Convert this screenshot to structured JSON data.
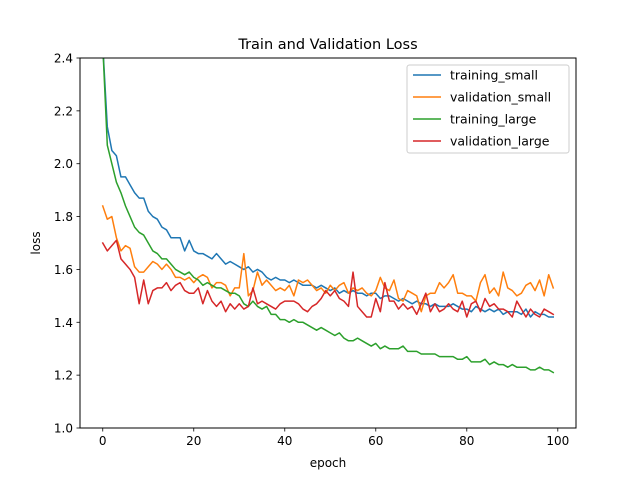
{
  "chart_data": {
    "type": "line",
    "title": "Train and Validation Loss",
    "xlabel": "epoch",
    "ylabel": "loss",
    "xlim": [
      -5,
      104
    ],
    "ylim": [
      1.0,
      2.4
    ],
    "xticks": [
      0,
      20,
      40,
      60,
      80,
      100
    ],
    "yticks": [
      1.0,
      1.2,
      1.4,
      1.6,
      1.8,
      2.0,
      2.2,
      2.4
    ],
    "xtick_labels": [
      "0",
      "20",
      "40",
      "60",
      "80",
      "100"
    ],
    "ytick_labels": [
      "1.0",
      "1.2",
      "1.4",
      "1.6",
      "1.8",
      "2.0",
      "2.2",
      "2.4"
    ],
    "grid": false,
    "legend": "top-right",
    "x": [
      0,
      1,
      2,
      3,
      4,
      5,
      6,
      7,
      8,
      9,
      10,
      11,
      12,
      13,
      14,
      15,
      16,
      17,
      18,
      19,
      20,
      21,
      22,
      23,
      24,
      25,
      26,
      27,
      28,
      29,
      30,
      31,
      32,
      33,
      34,
      35,
      36,
      37,
      38,
      39,
      40,
      41,
      42,
      43,
      44,
      45,
      46,
      47,
      48,
      49,
      50,
      51,
      52,
      53,
      54,
      55,
      56,
      57,
      58,
      59,
      60,
      61,
      62,
      63,
      64,
      65,
      66,
      67,
      68,
      69,
      70,
      71,
      72,
      73,
      74,
      75,
      76,
      77,
      78,
      79,
      80,
      81,
      82,
      83,
      84,
      85,
      86,
      87,
      88,
      89,
      90,
      91,
      92,
      93,
      94,
      95,
      96,
      97,
      98,
      99
    ],
    "series": [
      {
        "name": "training_small",
        "color": "#1f77b4",
        "values": [
          2.45,
          2.14,
          2.05,
          2.03,
          1.95,
          1.95,
          1.92,
          1.89,
          1.87,
          1.87,
          1.82,
          1.8,
          1.79,
          1.76,
          1.75,
          1.72,
          1.72,
          1.72,
          1.67,
          1.71,
          1.67,
          1.66,
          1.66,
          1.65,
          1.64,
          1.66,
          1.64,
          1.62,
          1.63,
          1.62,
          1.61,
          1.6,
          1.61,
          1.59,
          1.6,
          1.59,
          1.57,
          1.56,
          1.57,
          1.56,
          1.56,
          1.55,
          1.56,
          1.55,
          1.54,
          1.54,
          1.54,
          1.53,
          1.54,
          1.53,
          1.52,
          1.53,
          1.51,
          1.52,
          1.51,
          1.52,
          1.51,
          1.51,
          1.5,
          1.51,
          1.51,
          1.49,
          1.5,
          1.5,
          1.49,
          1.48,
          1.49,
          1.48,
          1.47,
          1.48,
          1.47,
          1.47,
          1.46,
          1.47,
          1.46,
          1.46,
          1.46,
          1.47,
          1.46,
          1.45,
          1.45,
          1.44,
          1.46,
          1.45,
          1.44,
          1.45,
          1.44,
          1.45,
          1.43,
          1.44,
          1.44,
          1.44,
          1.43,
          1.45,
          1.42,
          1.44,
          1.43,
          1.43,
          1.42,
          1.42
        ]
      },
      {
        "name": "validation_small",
        "color": "#ff7f0e",
        "values": [
          1.84,
          1.79,
          1.8,
          1.72,
          1.67,
          1.69,
          1.68,
          1.61,
          1.59,
          1.59,
          1.61,
          1.63,
          1.62,
          1.6,
          1.62,
          1.6,
          1.57,
          1.57,
          1.56,
          1.57,
          1.55,
          1.57,
          1.58,
          1.57,
          1.53,
          1.55,
          1.55,
          1.54,
          1.5,
          1.53,
          1.53,
          1.66,
          1.5,
          1.52,
          1.59,
          1.54,
          1.56,
          1.54,
          1.52,
          1.53,
          1.52,
          1.54,
          1.5,
          1.56,
          1.55,
          1.56,
          1.54,
          1.52,
          1.53,
          1.51,
          1.54,
          1.52,
          1.54,
          1.55,
          1.51,
          1.53,
          1.52,
          1.53,
          1.51,
          1.5,
          1.52,
          1.57,
          1.53,
          1.52,
          1.56,
          1.49,
          1.48,
          1.52,
          1.51,
          1.5,
          1.44,
          1.5,
          1.51,
          1.51,
          1.55,
          1.53,
          1.55,
          1.58,
          1.51,
          1.51,
          1.5,
          1.5,
          1.48,
          1.55,
          1.58,
          1.51,
          1.53,
          1.5,
          1.59,
          1.53,
          1.52,
          1.5,
          1.51,
          1.54,
          1.55,
          1.52,
          1.56,
          1.5,
          1.58,
          1.53
        ]
      },
      {
        "name": "training_large",
        "color": "#2ca02c",
        "values": [
          2.45,
          2.07,
          2.0,
          1.93,
          1.89,
          1.84,
          1.8,
          1.76,
          1.74,
          1.73,
          1.7,
          1.67,
          1.66,
          1.64,
          1.64,
          1.62,
          1.6,
          1.59,
          1.58,
          1.59,
          1.57,
          1.56,
          1.54,
          1.55,
          1.54,
          1.53,
          1.53,
          1.52,
          1.51,
          1.51,
          1.5,
          1.47,
          1.46,
          1.48,
          1.46,
          1.45,
          1.46,
          1.43,
          1.43,
          1.41,
          1.41,
          1.4,
          1.41,
          1.4,
          1.4,
          1.39,
          1.38,
          1.37,
          1.38,
          1.37,
          1.36,
          1.35,
          1.36,
          1.34,
          1.33,
          1.33,
          1.34,
          1.33,
          1.32,
          1.31,
          1.32,
          1.3,
          1.31,
          1.3,
          1.3,
          1.3,
          1.31,
          1.29,
          1.29,
          1.29,
          1.28,
          1.28,
          1.28,
          1.28,
          1.27,
          1.27,
          1.27,
          1.27,
          1.26,
          1.26,
          1.27,
          1.25,
          1.25,
          1.25,
          1.26,
          1.24,
          1.25,
          1.24,
          1.24,
          1.23,
          1.24,
          1.23,
          1.23,
          1.23,
          1.22,
          1.22,
          1.23,
          1.22,
          1.22,
          1.21
        ]
      },
      {
        "name": "validation_large",
        "color": "#d62728",
        "values": [
          1.7,
          1.67,
          1.69,
          1.71,
          1.64,
          1.62,
          1.6,
          1.57,
          1.47,
          1.56,
          1.47,
          1.52,
          1.53,
          1.53,
          1.55,
          1.52,
          1.54,
          1.55,
          1.52,
          1.51,
          1.51,
          1.53,
          1.47,
          1.52,
          1.48,
          1.46,
          1.48,
          1.44,
          1.47,
          1.45,
          1.47,
          1.45,
          1.46,
          1.53,
          1.47,
          1.48,
          1.47,
          1.46,
          1.45,
          1.47,
          1.48,
          1.48,
          1.48,
          1.47,
          1.45,
          1.44,
          1.46,
          1.47,
          1.49,
          1.52,
          1.5,
          1.52,
          1.49,
          1.48,
          1.46,
          1.59,
          1.46,
          1.44,
          1.42,
          1.42,
          1.49,
          1.44,
          1.55,
          1.48,
          1.48,
          1.45,
          1.47,
          1.45,
          1.46,
          1.43,
          1.47,
          1.51,
          1.44,
          1.47,
          1.44,
          1.45,
          1.47,
          1.45,
          1.44,
          1.48,
          1.42,
          1.47,
          1.48,
          1.44,
          1.49,
          1.46,
          1.47,
          1.45,
          1.45,
          1.44,
          1.42,
          1.48,
          1.45,
          1.42,
          1.45,
          1.43,
          1.42,
          1.45,
          1.44,
          1.43
        ]
      }
    ]
  }
}
